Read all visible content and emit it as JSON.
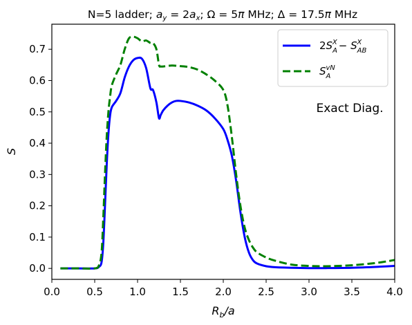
{
  "chart_data": {
    "type": "line",
    "title": "N=5 ladder; a_y = 2a_x; Ω = 5π MHz; Δ = 17.5π MHz",
    "xlabel": "R_b/a",
    "ylabel": "S",
    "xlim": [
      0.0,
      4.0
    ],
    "ylim": [
      -0.035,
      0.78
    ],
    "xticks": [
      0.0,
      0.5,
      1.0,
      1.5,
      2.0,
      2.5,
      3.0,
      3.5,
      4.0
    ],
    "xtick_labels": [
      "0.0",
      "0.5",
      "1.0",
      "1.5",
      "2.0",
      "2.5",
      "3.0",
      "3.5",
      "4.0"
    ],
    "yticks": [
      0.0,
      0.1,
      0.2,
      0.3,
      0.4,
      0.5,
      0.6,
      0.7
    ],
    "ytick_labels": [
      "0.0",
      "0.1",
      "0.2",
      "0.3",
      "0.4",
      "0.5",
      "0.6",
      "0.7"
    ],
    "grid": false,
    "legend_position": "top-right",
    "annotation": "Exact Diag.",
    "series": [
      {
        "name": "2S_A^X − S_AB^X",
        "color": "#0000ff",
        "style": "solid",
        "x": [
          0.1,
          0.3,
          0.5,
          0.55,
          0.58,
          0.6,
          0.62,
          0.64,
          0.66,
          0.68,
          0.7,
          0.75,
          0.8,
          0.85,
          0.9,
          0.95,
          1.0,
          1.05,
          1.1,
          1.15,
          1.18,
          1.22,
          1.25,
          1.27,
          1.3,
          1.35,
          1.4,
          1.45,
          1.5,
          1.6,
          1.7,
          1.8,
          1.9,
          2.0,
          2.05,
          2.1,
          2.15,
          2.2,
          2.25,
          2.3,
          2.35,
          2.4,
          2.5,
          2.6,
          2.8,
          3.0,
          3.2,
          3.5,
          3.8,
          4.0
        ],
        "y": [
          0.0,
          0.0,
          0.0,
          0.005,
          0.02,
          0.08,
          0.2,
          0.33,
          0.43,
          0.49,
          0.515,
          0.535,
          0.56,
          0.61,
          0.645,
          0.665,
          0.672,
          0.67,
          0.64,
          0.575,
          0.57,
          0.53,
          0.48,
          0.49,
          0.505,
          0.52,
          0.53,
          0.535,
          0.535,
          0.53,
          0.52,
          0.505,
          0.48,
          0.445,
          0.41,
          0.36,
          0.28,
          0.18,
          0.1,
          0.05,
          0.025,
          0.015,
          0.007,
          0.004,
          0.002,
          0.001,
          0.001,
          0.002,
          0.005,
          0.008
        ]
      },
      {
        "name": "S_A^vN",
        "color": "#008000",
        "style": "dashed",
        "x": [
          0.1,
          0.3,
          0.5,
          0.55,
          0.58,
          0.6,
          0.62,
          0.64,
          0.66,
          0.68,
          0.7,
          0.75,
          0.8,
          0.85,
          0.9,
          0.95,
          1.0,
          1.05,
          1.1,
          1.15,
          1.18,
          1.22,
          1.25,
          1.27,
          1.3,
          1.4,
          1.5,
          1.6,
          1.7,
          1.8,
          1.9,
          2.0,
          2.05,
          2.1,
          2.15,
          2.2,
          2.25,
          2.3,
          2.35,
          2.4,
          2.5,
          2.6,
          2.8,
          3.0,
          3.2,
          3.5,
          3.8,
          4.0
        ],
        "y": [
          0.0,
          0.0,
          0.0,
          0.01,
          0.05,
          0.16,
          0.3,
          0.42,
          0.5,
          0.55,
          0.585,
          0.62,
          0.65,
          0.7,
          0.735,
          0.74,
          0.735,
          0.725,
          0.728,
          0.72,
          0.72,
          0.7,
          0.65,
          0.645,
          0.645,
          0.648,
          0.646,
          0.643,
          0.635,
          0.62,
          0.6,
          0.57,
          0.52,
          0.42,
          0.3,
          0.2,
          0.13,
          0.09,
          0.065,
          0.05,
          0.035,
          0.025,
          0.012,
          0.008,
          0.007,
          0.01,
          0.018,
          0.027
        ]
      }
    ]
  }
}
